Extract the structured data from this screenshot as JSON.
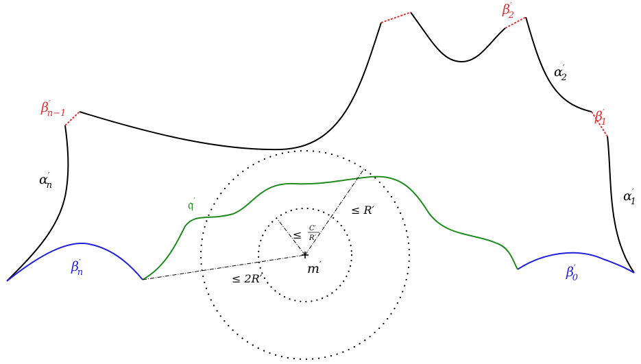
{
  "labels": {
    "alpha_1": {
      "base": "α",
      "sup": "′",
      "sub": "1"
    },
    "alpha_2": {
      "base": "α",
      "sup": "′",
      "sub": "2"
    },
    "alpha_n": {
      "base": "α",
      "sup": "′",
      "sub": "n"
    },
    "beta_0": {
      "base": "β",
      "sup": "′",
      "sub": "0"
    },
    "beta_1": {
      "base": "β",
      "sup": "′",
      "sub": "1"
    },
    "beta_2": {
      "base": "β",
      "sup": "′",
      "sub": "2"
    },
    "beta_n_minus_1": {
      "base": "β",
      "sup": "′",
      "sub": "n−1"
    },
    "beta_n": {
      "base": "β",
      "sup": "′",
      "sub": "n"
    },
    "q": {
      "base": "𝔮",
      "sup": "′"
    },
    "m": {
      "base": "m",
      "sup": "′"
    },
    "le_R": {
      "text": "≤ R′"
    },
    "le_2R": {
      "text": "≤ 2R′"
    },
    "le_frac": {
      "le": "≤",
      "num": "C′",
      "den": "R′"
    }
  },
  "colors": {
    "boundary": "#000000",
    "beta_red": "#e03030",
    "beta_blue": "#1f1fe0",
    "curve_green": "#1e8c1e"
  }
}
